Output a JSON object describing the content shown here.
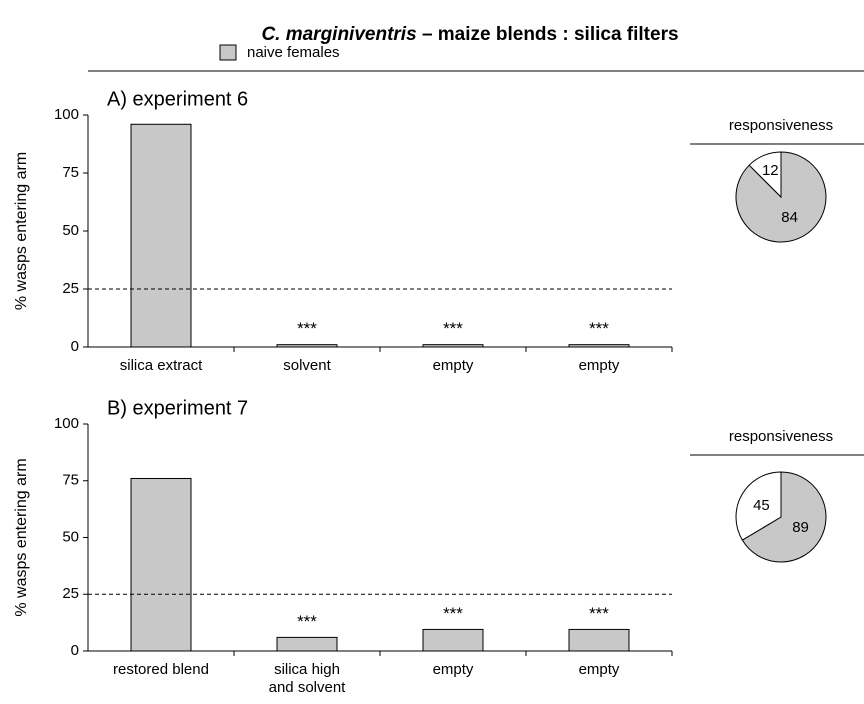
{
  "header": {
    "title_italic": "C. marginiventris",
    "title": "– maize blends : silica filters",
    "legend": {
      "name": "naive females",
      "color": "#c8c8c8"
    }
  },
  "chart_data": [
    {
      "type": "bar",
      "title": "A) experiment 6",
      "y_label": "% wasps entering arm",
      "categories": [
        "silica extract",
        "solvent",
        "empty",
        "empty"
      ],
      "values": [
        96,
        1,
        1,
        1
      ],
      "annotations": [
        null,
        "***",
        "***",
        "***"
      ],
      "color": "#c8c8c8",
      "ylim": [
        0,
        100
      ],
      "yticks": [
        0,
        25,
        50,
        75,
        100
      ],
      "reference_line": 25
    },
    {
      "type": "pie",
      "title": "responsiveness",
      "values": [
        12,
        84
      ],
      "colors": [
        "#ffffff",
        "#c8c8c8"
      ]
    },
    {
      "type": "bar",
      "title": "B) experiment 7",
      "y_label": "% wasps entering arm",
      "categories": [
        "restored blend",
        "silica high\nand solvent",
        "empty",
        "empty"
      ],
      "values": [
        76,
        6,
        9.5,
        9.5
      ],
      "annotations": [
        null,
        "***",
        "***",
        "***"
      ],
      "color": "#c8c8c8",
      "ylim": [
        0,
        100
      ],
      "yticks": [
        0,
        25,
        50,
        75,
        100
      ],
      "reference_line": 25
    },
    {
      "type": "pie",
      "title": "responsiveness",
      "values": [
        45,
        89
      ],
      "colors": [
        "#ffffff",
        "#c8c8c8"
      ]
    }
  ]
}
